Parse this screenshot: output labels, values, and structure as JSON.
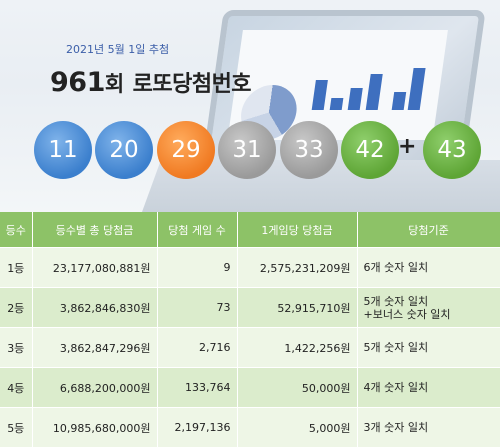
{
  "header": {
    "date": "2021년 5월 1일 추첨",
    "round": "961",
    "round_suffix": "회",
    "title_rest": "로또당첨번호"
  },
  "numbers": [
    "11",
    "20",
    "29",
    "31",
    "33",
    "42"
  ],
  "plus": "+",
  "bonus": "43",
  "table": {
    "headers": [
      "등수",
      "등수별 총 당첨금",
      "당첨 게임 수",
      "1게임당 당첨금",
      "당첨기준"
    ],
    "rows": [
      {
        "rank": "1등",
        "total": "23,177,080,881원",
        "games": "9",
        "per_game": "2,575,231,209원",
        "criteria": "6개 숫자 일치",
        "criteria2": ""
      },
      {
        "rank": "2등",
        "total": "3,862,846,830원",
        "games": "73",
        "per_game": "52,915,710원",
        "criteria": "5개 숫자 일치",
        "criteria2": "+보너스 숫자 일치"
      },
      {
        "rank": "3등",
        "total": "3,862,847,296원",
        "games": "2,716",
        "per_game": "1,422,256원",
        "criteria": "5개 숫자 일치",
        "criteria2": ""
      },
      {
        "rank": "4등",
        "total": "6,688,200,000원",
        "games": "133,764",
        "per_game": "50,000원",
        "criteria": "4개 숫자 일치",
        "criteria2": ""
      },
      {
        "rank": "5등",
        "total": "10,985,680,000원",
        "games": "2,197,136",
        "per_game": "5,000원",
        "criteria": "3개 숫자 일치",
        "criteria2": ""
      }
    ]
  },
  "colors": {
    "blue_ball": "#3b7fcd",
    "orange_ball": "#f07a22",
    "gray_ball": "#9a9a9a",
    "green_ball": "#5ea535",
    "table_header": "#8dc267"
  }
}
